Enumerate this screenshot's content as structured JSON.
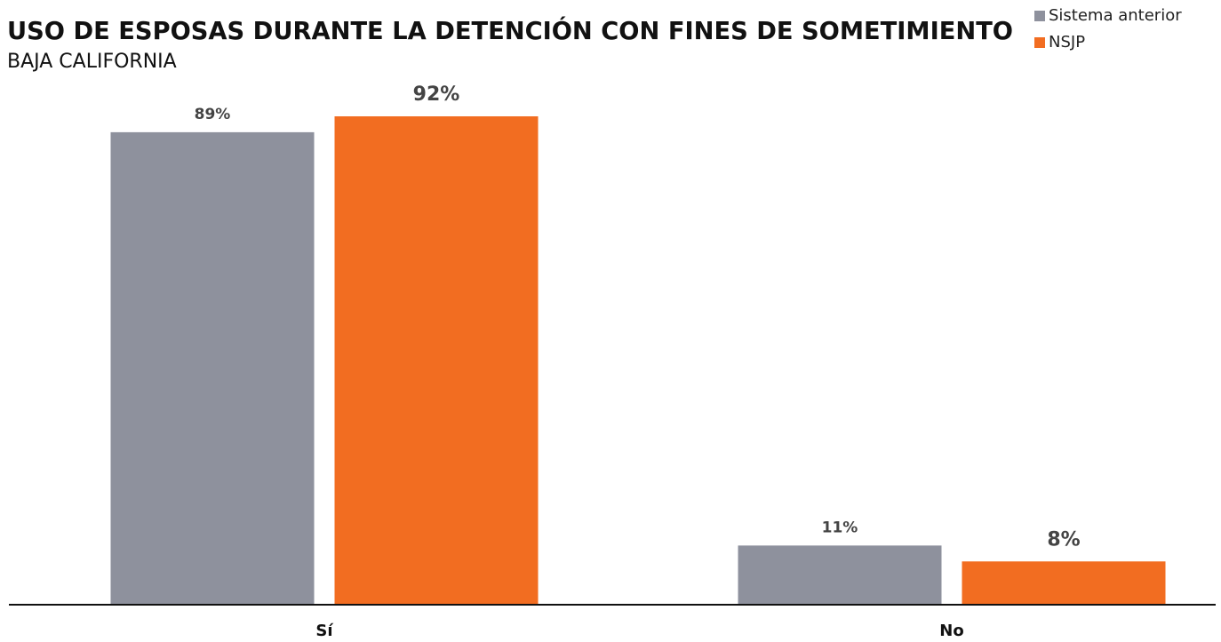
{
  "chart_data": {
    "type": "bar",
    "title": "USO DE ESPOSAS DURANTE LA DETENCIÓN CON FINES DE SOMETIMIENTO",
    "subtitle": "BAJA CALIFORNIA",
    "categories": [
      "Sí",
      "No"
    ],
    "series": [
      {
        "name": "Sistema anterior",
        "color": "#8e919d",
        "values": [
          89,
          11
        ],
        "value_labels": [
          "89%",
          "11%"
        ]
      },
      {
        "name": "NSJP",
        "color": "#f26d21",
        "values": [
          92,
          8
        ],
        "value_labels": [
          "92%",
          "8%"
        ]
      }
    ],
    "legend": "top-right"
  }
}
